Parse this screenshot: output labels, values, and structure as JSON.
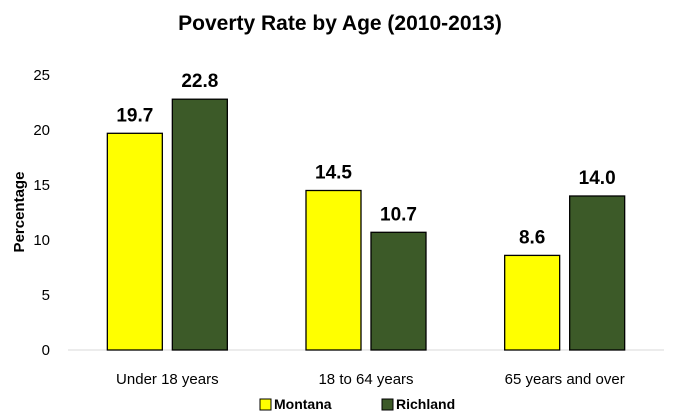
{
  "chart_data": {
    "type": "bar",
    "title": "Poverty Rate by Age (2010-2013)",
    "xlabel": "",
    "ylabel": "Percentage",
    "categories": [
      "Under 18 years",
      "18 to 64 years",
      "65 years and over"
    ],
    "series": [
      {
        "name": "Montana",
        "values": [
          19.7,
          14.5,
          8.6
        ],
        "color": "#ffff00"
      },
      {
        "name": "Richland",
        "values": [
          22.8,
          10.7,
          14.0
        ],
        "color": "#3c5a28"
      }
    ],
    "ylim": [
      0,
      25
    ],
    "yticks": [
      "0",
      "5",
      "10",
      "15",
      "20",
      "25"
    ],
    "data_labels": [
      [
        "19.7",
        "14.5",
        "8.6"
      ],
      [
        "22.8",
        "10.7",
        "14.0"
      ]
    ],
    "grid": false,
    "legend": "bottom"
  }
}
